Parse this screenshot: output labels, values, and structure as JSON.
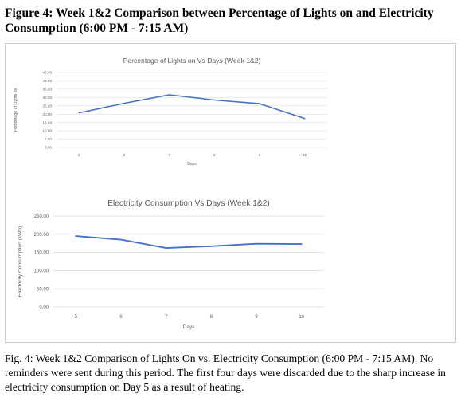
{
  "figure_title": "Figure 4: Week 1&2 Comparison between Percentage of Lights on and Electricity Consumption (6:00 PM - 7:15 AM)",
  "caption": "Fig. 4: Week 1&2 Comparison of Lights On vs. Electricity Consumption (6:00 PM - 7:15 AM). No reminders were sent during this period. The first four days were discarded due to the sharp increase in electricity consumption on Day 5 as a result of heating.",
  "colors": {
    "line": "#4472c4",
    "grid": "#d9d9d9",
    "text": "#595959"
  },
  "chart_data": [
    {
      "type": "line",
      "title": "Percentage of Lights on Vs Days (Week 1&2)",
      "xlabel": "Days",
      "ylabel": "Percentage of Lights on",
      "categories": [
        "5",
        "6",
        "7",
        "8",
        "9",
        "10"
      ],
      "series": [
        {
          "values": [
            20.8,
            26.5,
            31.6,
            28.5,
            26.3,
            17.4
          ]
        }
      ],
      "ylim": [
        0,
        45
      ],
      "yticks": [
        "0.00",
        "5.00",
        "10.00",
        "15.00",
        "20.00",
        "25.00",
        "30.00",
        "35.00",
        "40.00",
        "45.00"
      ],
      "grid": true,
      "legend": "none"
    },
    {
      "type": "line",
      "title": "Electricity Consumption Vs Days (Week 1&2)",
      "xlabel": "Days",
      "ylabel": "Electricity Consumption (kWh)",
      "categories": [
        "5",
        "6",
        "7",
        "8",
        "9",
        "10"
      ],
      "series": [
        {
          "values": [
            195,
            185,
            162,
            167,
            174,
            173
          ]
        }
      ],
      "ylim": [
        0,
        250
      ],
      "yticks": [
        "0.00",
        "50.00",
        "100.00",
        "150.00",
        "200.00",
        "250.00"
      ],
      "grid": true,
      "legend": "none"
    }
  ]
}
